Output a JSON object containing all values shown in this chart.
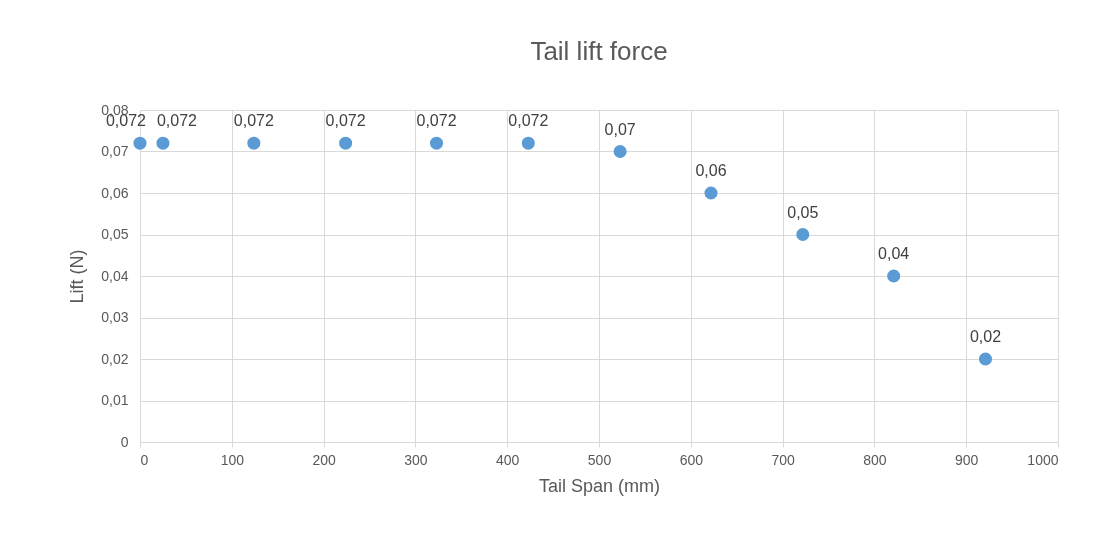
{
  "chart_data": {
    "type": "scatter",
    "title": "Tail lift force",
    "xlabel": "Tail Span (mm)",
    "ylabel": "Lift (N)",
    "x": [
      0,
      25,
      124,
      224,
      323,
      423,
      523,
      622,
      722,
      821,
      921
    ],
    "series": [
      {
        "color": "#5b9bd5",
        "values": [
          0.072,
          0.072,
          0.072,
          0.072,
          0.072,
          0.072,
          0.07,
          0.06,
          0.05,
          0.04,
          0.02
        ],
        "value_labels": [
          "0,072",
          "0,072",
          "0,072",
          "0,072",
          "0,072",
          "0,072",
          "0,07",
          "0,06",
          "0,05",
          "0,04",
          "0,02"
        ]
      }
    ],
    "xlim": [
      0,
      1000
    ],
    "xticks": [
      0,
      100,
      200,
      300,
      400,
      500,
      600,
      700,
      800,
      900,
      1000
    ],
    "ylim": [
      0,
      0.08
    ],
    "yticks": [
      0,
      {
        "value": 0.01,
        "label": "0,01"
      },
      {
        "value": 0.02,
        "label": "0,02"
      },
      {
        "value": 0.03,
        "label": "0,03"
      },
      {
        "value": 0.04,
        "label": "0,04"
      },
      {
        "value": 0.05,
        "label": "0,05"
      },
      {
        "value": 0.06,
        "label": "0,06"
      },
      {
        "value": 0.07,
        "label": "0,07"
      },
      {
        "value": 0.08,
        "label": "0,08"
      }
    ],
    "grid": true,
    "marker": "circle"
  }
}
